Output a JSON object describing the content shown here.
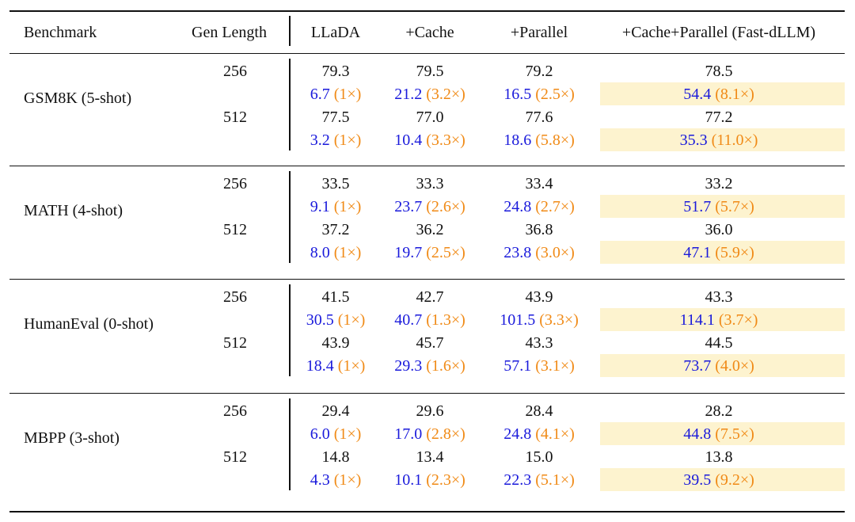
{
  "table": {
    "headers": {
      "benchmark": "Benchmark",
      "gen_length": "Gen Length",
      "llada": "LLaDA",
      "cache": "+Cache",
      "parallel": "+Parallel",
      "fast": "+Cache+Parallel (Fast-dLLM)"
    },
    "colors": {
      "throughput": "#1a1adb",
      "speedup": "#f08a16",
      "highlight": "#fdf3cf"
    },
    "groups": [
      {
        "benchmark": "GSM8K (5-shot)",
        "rows": [
          {
            "length": "256",
            "accuracy": [
              "79.3",
              "79.5",
              "79.2",
              "78.5"
            ],
            "throughput": [
              "6.7",
              "21.2",
              "16.5",
              "54.4"
            ],
            "speedup": [
              "(1×)",
              "(3.2×)",
              "(2.5×)",
              "(8.1×)"
            ]
          },
          {
            "length": "512",
            "accuracy": [
              "77.5",
              "77.0",
              "77.6",
              "77.2"
            ],
            "throughput": [
              "3.2",
              "10.4",
              "18.6",
              "35.3"
            ],
            "speedup": [
              "(1×)",
              "(3.3×)",
              "(5.8×)",
              "(11.0×)"
            ]
          }
        ]
      },
      {
        "benchmark": "MATH (4-shot)",
        "rows": [
          {
            "length": "256",
            "accuracy": [
              "33.5",
              "33.3",
              "33.4",
              "33.2"
            ],
            "throughput": [
              "9.1",
              "23.7",
              "24.8",
              "51.7"
            ],
            "speedup": [
              "(1×)",
              "(2.6×)",
              "(2.7×)",
              "(5.7×)"
            ]
          },
          {
            "length": "512",
            "accuracy": [
              "37.2",
              "36.2",
              "36.8",
              "36.0"
            ],
            "throughput": [
              "8.0",
              "19.7",
              "23.8",
              "47.1"
            ],
            "speedup": [
              "(1×)",
              "(2.5×)",
              "(3.0×)",
              "(5.9×)"
            ]
          }
        ]
      },
      {
        "benchmark": "HumanEval (0-shot)",
        "rows": [
          {
            "length": "256",
            "accuracy": [
              "41.5",
              "42.7",
              "43.9",
              "43.3"
            ],
            "throughput": [
              "30.5",
              "40.7",
              "101.5",
              "114.1"
            ],
            "speedup": [
              "(1×)",
              "(1.3×)",
              "(3.3×)",
              "(3.7×)"
            ]
          },
          {
            "length": "512",
            "accuracy": [
              "43.9",
              "45.7",
              "43.3",
              "44.5"
            ],
            "throughput": [
              "18.4",
              "29.3",
              "57.1",
              "73.7"
            ],
            "speedup": [
              "(1×)",
              "(1.6×)",
              "(3.1×)",
              "(4.0×)"
            ]
          }
        ]
      },
      {
        "benchmark": "MBPP (3-shot)",
        "rows": [
          {
            "length": "256",
            "accuracy": [
              "29.4",
              "29.6",
              "28.4",
              "28.2"
            ],
            "throughput": [
              "6.0",
              "17.0",
              "24.8",
              "44.8"
            ],
            "speedup": [
              "(1×)",
              "(2.8×)",
              "(4.1×)",
              "(7.5×)"
            ]
          },
          {
            "length": "512",
            "accuracy": [
              "14.8",
              "13.4",
              "15.0",
              "13.8"
            ],
            "throughput": [
              "4.3",
              "10.1",
              "22.3",
              "39.5"
            ],
            "speedup": [
              "(1×)",
              "(2.3×)",
              "(5.1×)",
              "(9.2×)"
            ]
          }
        ]
      }
    ]
  }
}
